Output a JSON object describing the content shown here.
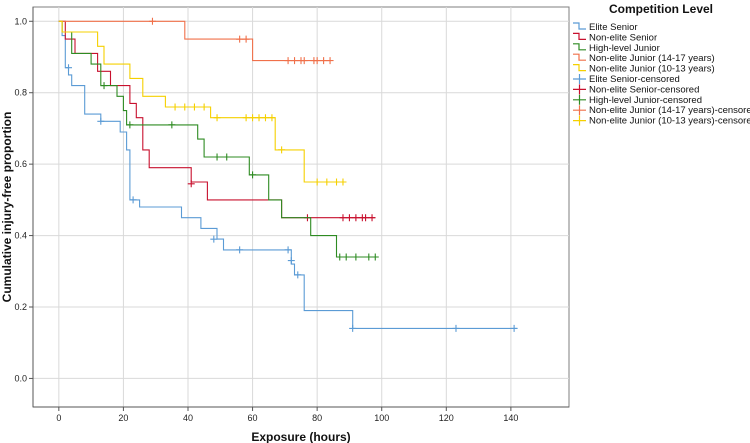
{
  "chart_data": {
    "type": "line",
    "subtype": "kaplan-meier step",
    "title": "",
    "xlabel": "Exposure (hours)",
    "ylabel": "Cumulative injury-free proportion",
    "xlim": [
      -8,
      158
    ],
    "ylim": [
      -0.08,
      1.04
    ],
    "xticks": [
      0,
      20,
      40,
      60,
      80,
      100,
      120,
      140
    ],
    "yticks": [
      0.0,
      0.2,
      0.4,
      0.6,
      0.8,
      1.0
    ],
    "xtick_labels": [
      "0",
      "20",
      "40",
      "60",
      "80",
      "100",
      "120",
      "140"
    ],
    "ytick_labels": [
      "0.0",
      "0.2",
      "0.4",
      "0.6",
      "0.8",
      "1.0"
    ],
    "grid": true,
    "legend": {
      "title": "Competition Level",
      "placement": "right",
      "entries": [
        {
          "label": "Elite Senior",
          "color": "#5b9bd5",
          "marker": "line"
        },
        {
          "label": "Non-elite Senior",
          "color": "#c8102e",
          "marker": "line"
        },
        {
          "label": "High-level Junior",
          "color": "#2e8b22",
          "marker": "line"
        },
        {
          "label": "Non-elite Junior (14-17 years)",
          "color": "#f0704a",
          "marker": "line"
        },
        {
          "label": "Non-elite Junior (10-13 years)",
          "color": "#f5d000",
          "marker": "line"
        },
        {
          "label": "Elite Senior-censored",
          "color": "#5b9bd5",
          "marker": "plus"
        },
        {
          "label": "Non-elite Senior-censored",
          "color": "#c8102e",
          "marker": "plus"
        },
        {
          "label": "High-level Junior-censored",
          "color": "#2e8b22",
          "marker": "plus"
        },
        {
          "label": "Non-elite Junior (14-17 years)-censored",
          "color": "#f0704a",
          "marker": "plus"
        },
        {
          "label": "Non-elite Junior (10-13 years)-censored",
          "color": "#f5d000",
          "marker": "plus"
        }
      ]
    },
    "series": [
      {
        "name": "Elite Senior",
        "color": "#5b9bd5",
        "steps": [
          [
            0,
            1.0
          ],
          [
            1,
            0.96
          ],
          [
            2,
            0.87
          ],
          [
            3,
            0.85
          ],
          [
            4,
            0.82
          ],
          [
            8,
            0.74
          ],
          [
            13,
            0.72
          ],
          [
            19,
            0.69
          ],
          [
            21,
            0.64
          ],
          [
            22,
            0.5
          ],
          [
            25,
            0.48
          ],
          [
            38,
            0.45
          ],
          [
            44,
            0.42
          ],
          [
            49,
            0.39
          ],
          [
            51,
            0.36
          ],
          [
            72,
            0.32
          ],
          [
            73,
            0.29
          ],
          [
            76,
            0.19
          ],
          [
            91,
            0.14
          ],
          [
            142,
            0.14
          ]
        ],
        "censored": [
          [
            3,
            0.87
          ],
          [
            13,
            0.72
          ],
          [
            23,
            0.5
          ],
          [
            48,
            0.39
          ],
          [
            56,
            0.36
          ],
          [
            71,
            0.36
          ],
          [
            72,
            0.33
          ],
          [
            74,
            0.29
          ],
          [
            91,
            0.14
          ],
          [
            123,
            0.14
          ],
          [
            141,
            0.14
          ]
        ]
      },
      {
        "name": "Non-elite Senior",
        "color": "#c8102e",
        "steps": [
          [
            0,
            1.0
          ],
          [
            2,
            0.95
          ],
          [
            5,
            0.91
          ],
          [
            12,
            0.86
          ],
          [
            16,
            0.82
          ],
          [
            22,
            0.77
          ],
          [
            24,
            0.73
          ],
          [
            26,
            0.64
          ],
          [
            28,
            0.59
          ],
          [
            41,
            0.55
          ],
          [
            46,
            0.5
          ],
          [
            69,
            0.45
          ],
          [
            98,
            0.45
          ]
        ],
        "censored": [
          [
            41,
            0.545
          ],
          [
            77,
            0.45
          ],
          [
            88,
            0.45
          ],
          [
            90,
            0.45
          ],
          [
            92,
            0.45
          ],
          [
            94,
            0.45
          ],
          [
            95,
            0.45
          ],
          [
            97,
            0.45
          ]
        ]
      },
      {
        "name": "High-level Junior",
        "color": "#2e8b22",
        "steps": [
          [
            0,
            1.0
          ],
          [
            1,
            0.97
          ],
          [
            4,
            0.91
          ],
          [
            10,
            0.88
          ],
          [
            13,
            0.82
          ],
          [
            18,
            0.79
          ],
          [
            20,
            0.75
          ],
          [
            21,
            0.71
          ],
          [
            43,
            0.67
          ],
          [
            45,
            0.62
          ],
          [
            59,
            0.57
          ],
          [
            65,
            0.5
          ],
          [
            69,
            0.45
          ],
          [
            78,
            0.4
          ],
          [
            86,
            0.34
          ],
          [
            99,
            0.34
          ]
        ],
        "censored": [
          [
            14,
            0.82
          ],
          [
            22,
            0.71
          ],
          [
            35,
            0.71
          ],
          [
            49,
            0.62
          ],
          [
            52,
            0.62
          ],
          [
            60,
            0.57
          ],
          [
            87,
            0.34
          ],
          [
            89,
            0.34
          ],
          [
            92,
            0.34
          ],
          [
            96,
            0.34
          ],
          [
            98,
            0.34
          ]
        ]
      },
      {
        "name": "Non-elite Junior (14-17 years)",
        "color": "#f0704a",
        "steps": [
          [
            0,
            1.0
          ],
          [
            39,
            0.95
          ],
          [
            60,
            0.89
          ],
          [
            84,
            0.89
          ]
        ],
        "censored": [
          [
            29,
            1.0
          ],
          [
            56,
            0.95
          ],
          [
            58,
            0.95
          ],
          [
            71,
            0.89
          ],
          [
            73,
            0.89
          ],
          [
            75,
            0.89
          ],
          [
            76,
            0.89
          ],
          [
            79,
            0.89
          ],
          [
            80,
            0.89
          ],
          [
            82,
            0.89
          ],
          [
            84,
            0.89
          ]
        ]
      },
      {
        "name": "Non-elite Junior (10-13 years)",
        "color": "#f5d000",
        "steps": [
          [
            0,
            1.0
          ],
          [
            1,
            0.97
          ],
          [
            12,
            0.93
          ],
          [
            14,
            0.88
          ],
          [
            22,
            0.84
          ],
          [
            26,
            0.79
          ],
          [
            33,
            0.76
          ],
          [
            47,
            0.73
          ],
          [
            67,
            0.64
          ],
          [
            76,
            0.55
          ],
          [
            89,
            0.55
          ]
        ],
        "censored": [
          [
            36,
            0.76
          ],
          [
            39,
            0.76
          ],
          [
            42,
            0.76
          ],
          [
            45,
            0.76
          ],
          [
            49,
            0.73
          ],
          [
            58,
            0.73
          ],
          [
            60,
            0.73
          ],
          [
            62,
            0.73
          ],
          [
            64,
            0.73
          ],
          [
            66,
            0.73
          ],
          [
            69,
            0.64
          ],
          [
            80,
            0.55
          ],
          [
            83,
            0.55
          ],
          [
            86,
            0.55
          ],
          [
            88,
            0.55
          ]
        ]
      }
    ]
  }
}
